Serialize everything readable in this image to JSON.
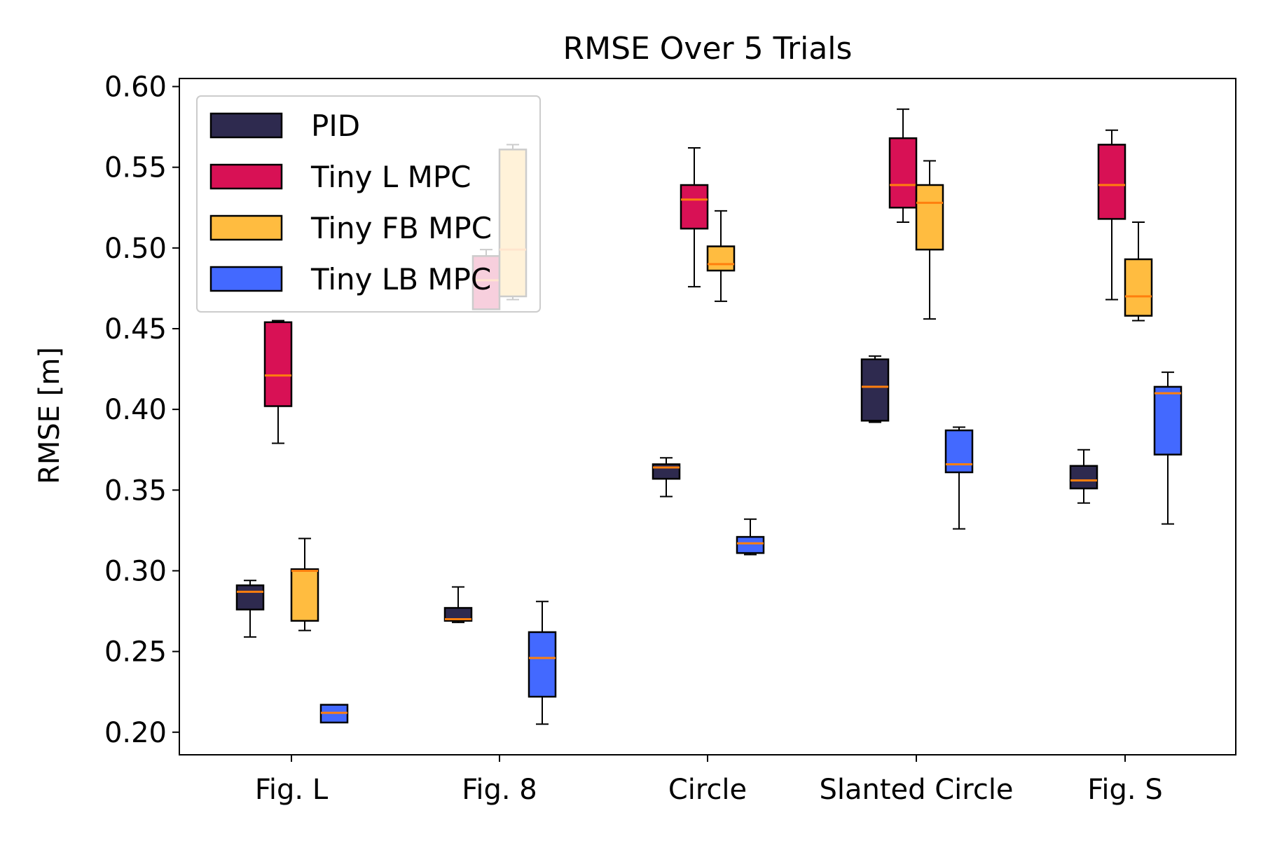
{
  "chart_data": {
    "type": "box",
    "title": "RMSE Over 5 Trials",
    "xlabel": "",
    "ylabel": "RMSE [m]",
    "ylim": [
      0.186,
      0.605
    ],
    "yticks": [
      "0.20",
      "0.25",
      "0.30",
      "0.35",
      "0.40",
      "0.45",
      "0.50",
      "0.55",
      "0.60"
    ],
    "ytick_values": [
      0.2,
      0.25,
      0.3,
      0.35,
      0.4,
      0.45,
      0.5,
      0.55,
      0.6
    ],
    "categories": [
      "Fig. L",
      "Fig. 8",
      "Circle",
      "Slanted Circle",
      "Fig. S"
    ],
    "grid": false,
    "legend_position": "top-left",
    "median_color": "#ff7f0e",
    "series": [
      {
        "name": "PID",
        "color": "#2e2a4f",
        "boxes": [
          {
            "whisker_low": 0.259,
            "q1": 0.276,
            "median": 0.287,
            "q3": 0.291,
            "whisker_high": 0.294
          },
          {
            "whisker_low": 0.268,
            "q1": 0.269,
            "median": 0.27,
            "q3": 0.277,
            "whisker_high": 0.29
          },
          {
            "whisker_low": 0.346,
            "q1": 0.357,
            "median": 0.364,
            "q3": 0.366,
            "whisker_high": 0.37
          },
          {
            "whisker_low": 0.392,
            "q1": 0.393,
            "median": 0.414,
            "q3": 0.431,
            "whisker_high": 0.433
          },
          {
            "whisker_low": 0.342,
            "q1": 0.351,
            "median": 0.356,
            "q3": 0.365,
            "whisker_high": 0.375
          }
        ]
      },
      {
        "name": "Tiny L MPC",
        "color": "#d81155",
        "boxes": [
          {
            "whisker_low": 0.379,
            "q1": 0.402,
            "median": 0.421,
            "q3": 0.454,
            "whisker_high": 0.455
          },
          {
            "whisker_low": 0.462,
            "q1": 0.462,
            "median": 0.48,
            "q3": 0.495,
            "whisker_high": 0.499
          },
          {
            "whisker_low": 0.476,
            "q1": 0.512,
            "median": 0.53,
            "q3": 0.539,
            "whisker_high": 0.562
          },
          {
            "whisker_low": 0.516,
            "q1": 0.525,
            "median": 0.539,
            "q3": 0.568,
            "whisker_high": 0.586
          },
          {
            "whisker_low": 0.468,
            "q1": 0.518,
            "median": 0.539,
            "q3": 0.564,
            "whisker_high": 0.573
          }
        ]
      },
      {
        "name": "Tiny FB MPC",
        "color": "#ffbc40",
        "boxes": [
          {
            "whisker_low": 0.263,
            "q1": 0.269,
            "median": 0.3,
            "q3": 0.301,
            "whisker_high": 0.32
          },
          {
            "whisker_low": 0.468,
            "q1": 0.47,
            "median": 0.499,
            "q3": 0.561,
            "whisker_high": 0.564
          },
          {
            "whisker_low": 0.467,
            "q1": 0.486,
            "median": 0.49,
            "q3": 0.501,
            "whisker_high": 0.523
          },
          {
            "whisker_low": 0.456,
            "q1": 0.499,
            "median": 0.528,
            "q3": 0.539,
            "whisker_high": 0.554
          },
          {
            "whisker_low": 0.455,
            "q1": 0.458,
            "median": 0.47,
            "q3": 0.493,
            "whisker_high": 0.516
          }
        ]
      },
      {
        "name": "Tiny LB MPC",
        "color": "#4369ff",
        "boxes": [
          {
            "whisker_low": 0.206,
            "q1": 0.206,
            "median": 0.212,
            "q3": 0.217,
            "whisker_high": 0.217
          },
          {
            "whisker_low": 0.205,
            "q1": 0.222,
            "median": 0.246,
            "q3": 0.262,
            "whisker_high": 0.281
          },
          {
            "whisker_low": 0.31,
            "q1": 0.311,
            "median": 0.317,
            "q3": 0.321,
            "whisker_high": 0.332
          },
          {
            "whisker_low": 0.326,
            "q1": 0.361,
            "median": 0.366,
            "q3": 0.387,
            "whisker_high": 0.389
          },
          {
            "whisker_low": 0.329,
            "q1": 0.372,
            "median": 0.41,
            "q3": 0.414,
            "whisker_high": 0.423
          }
        ]
      }
    ]
  }
}
